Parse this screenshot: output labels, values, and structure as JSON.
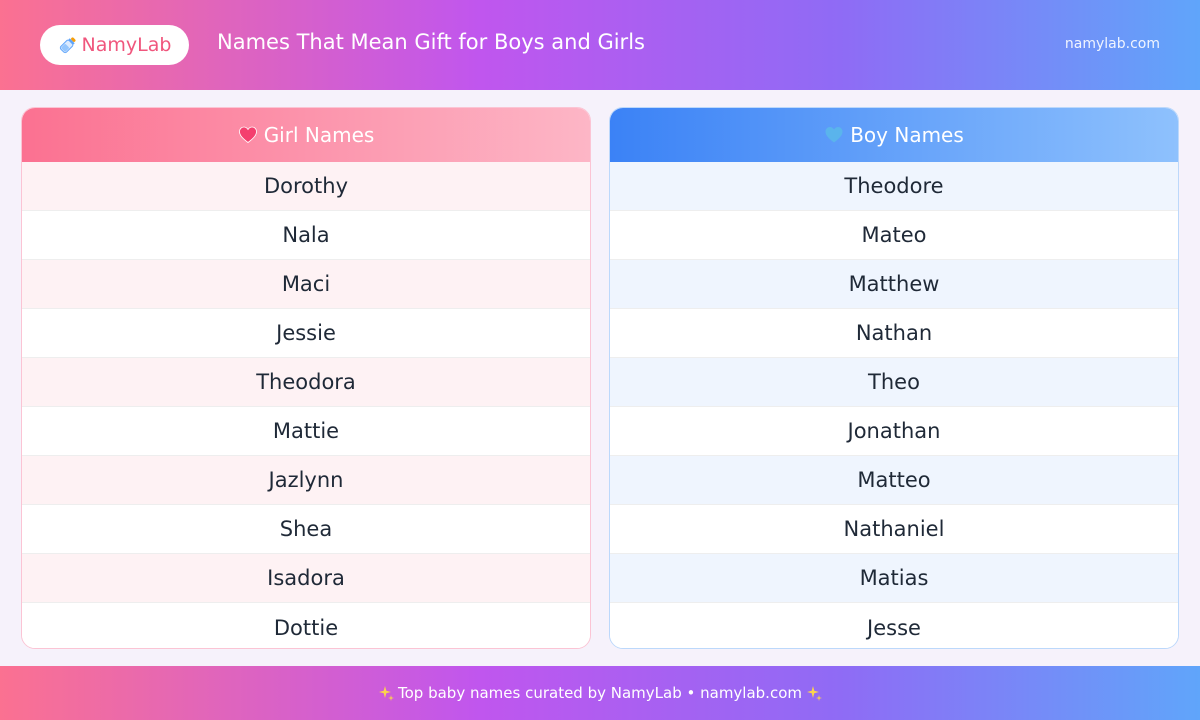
{
  "header": {
    "logo_text": "NamyLab",
    "logo_icon": "baby-bottle-icon",
    "title": "Names That Mean Gift for Boys and Girls",
    "site_url": "namylab.com"
  },
  "girl_panel": {
    "title": "Girl Names",
    "icon": "pink-heart-icon",
    "accent": "#fb7191",
    "names": [
      "Dorothy",
      "Nala",
      "Maci",
      "Jessie",
      "Theodora",
      "Mattie",
      "Jazlynn",
      "Shea",
      "Isadora",
      "Dottie"
    ]
  },
  "boy_panel": {
    "title": "Boy Names",
    "icon": "blue-heart-icon",
    "accent": "#3b82f6",
    "names": [
      "Theodore",
      "Mateo",
      "Matthew",
      "Nathan",
      "Theo",
      "Jonathan",
      "Matteo",
      "Nathaniel",
      "Matias",
      "Jesse"
    ]
  },
  "footer": {
    "text": "Top baby names curated by NamyLab • namylab.com",
    "icon": "sparkles-icon"
  }
}
